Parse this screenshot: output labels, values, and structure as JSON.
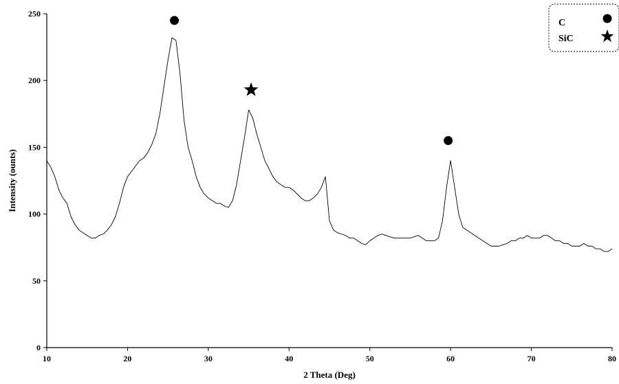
{
  "chart_data": {
    "type": "line",
    "title": "",
    "xlabel": "2 Theta (Deg)",
    "ylabel": "Intensity (ounts)",
    "xlim": [
      10,
      80
    ],
    "ylim": [
      0,
      250
    ],
    "x_ticks": [
      10,
      20,
      30,
      40,
      50,
      60,
      70,
      80
    ],
    "y_ticks": [
      0,
      50,
      100,
      150,
      200,
      250
    ],
    "grid": false,
    "legend_position": "top-right",
    "legend": [
      {
        "label": "C",
        "marker": "circle"
      },
      {
        "label": "SiC",
        "marker": "star"
      }
    ],
    "series": [
      {
        "x": [
          10,
          10.5,
          11,
          11.5,
          12,
          12.5,
          13,
          13.5,
          14,
          14.5,
          15,
          15.5,
          16,
          16.5,
          17,
          17.5,
          18,
          18.5,
          19,
          19.5,
          20,
          20.5,
          21,
          21.5,
          22,
          22.5,
          23,
          23.5,
          24,
          24.5,
          25,
          25.5,
          26,
          26.5,
          27,
          27.5,
          28,
          28.5,
          29,
          29.5,
          30,
          30.5,
          31,
          31.5,
          32,
          32.5,
          33,
          33.5,
          34,
          34.5,
          35,
          35.5,
          36,
          36.5,
          37,
          37.5,
          38,
          38.5,
          39,
          39.5,
          40,
          40.5,
          41,
          41.5,
          42,
          42.5,
          43,
          43.5,
          44,
          44.5,
          45,
          45.5,
          46,
          46.5,
          47,
          47.5,
          48,
          48.5,
          49,
          49.5,
          50,
          50.5,
          51,
          51.5,
          52,
          52.5,
          53,
          53.5,
          54,
          54.5,
          55,
          55.5,
          56,
          56.5,
          57,
          57.5,
          58,
          58.5,
          59,
          59.5,
          60,
          60.5,
          61,
          61.5,
          62,
          62.5,
          63,
          63.5,
          64,
          64.5,
          65,
          65.5,
          66,
          66.5,
          67,
          67.5,
          68,
          68.5,
          69,
          69.5,
          70,
          70.5,
          71,
          71.5,
          72,
          72.5,
          73,
          73.5,
          74,
          74.5,
          75,
          75.5,
          76,
          76.5,
          77,
          77.5,
          78,
          78.5,
          79,
          79.5,
          80
        ],
        "y": [
          140,
          135,
          128,
          118,
          112,
          108,
          98,
          92,
          88,
          86,
          84,
          82,
          82,
          84,
          85,
          88,
          92,
          98,
          108,
          120,
          128,
          132,
          136,
          140,
          142,
          146,
          152,
          160,
          175,
          195,
          215,
          232,
          230,
          205,
          170,
          150,
          140,
          128,
          120,
          115,
          112,
          110,
          108,
          108,
          106,
          105,
          110,
          122,
          140,
          158,
          178,
          172,
          160,
          150,
          140,
          134,
          128,
          124,
          122,
          120,
          120,
          118,
          115,
          112,
          110,
          110,
          112,
          115,
          120,
          128,
          95,
          88,
          86,
          85,
          84,
          82,
          82,
          80,
          78,
          77,
          80,
          82,
          84,
          85,
          84,
          83,
          82,
          82,
          82,
          82,
          82,
          83,
          84,
          82,
          80,
          80,
          80,
          82,
          95,
          120,
          140,
          120,
          100,
          90,
          88,
          86,
          84,
          82,
          80,
          78,
          76,
          76,
          76,
          77,
          78,
          80,
          80,
          82,
          82,
          84,
          82,
          82,
          82,
          84,
          84,
          82,
          80,
          80,
          78,
          78,
          76,
          76,
          76,
          78,
          76,
          76,
          74,
          74,
          72,
          72,
          74
        ]
      }
    ],
    "annotations": [
      {
        "marker": "circle",
        "x": 25.8,
        "y": 245,
        "label": "C"
      },
      {
        "marker": "star",
        "x": 35.3,
        "y": 193,
        "label": "SiC"
      },
      {
        "marker": "circle",
        "x": 59.7,
        "y": 155,
        "label": "C"
      }
    ]
  }
}
